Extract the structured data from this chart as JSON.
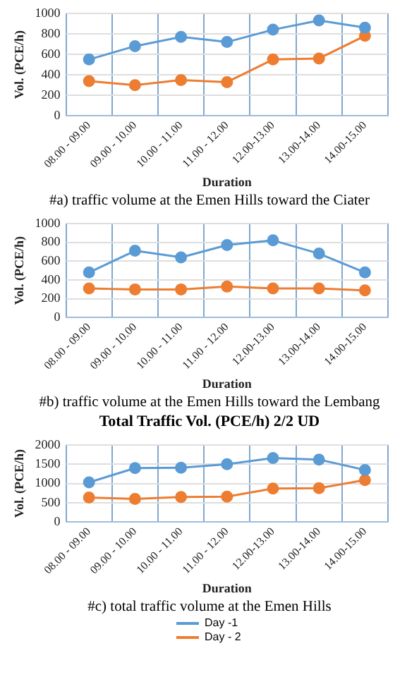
{
  "chart_data": [
    {
      "type": "line",
      "xlabel": "Duration",
      "ylabel": "Vol. (PCE/h)",
      "categories": [
        "08.00 - 09.00",
        "09.00 - 10.00",
        "10.00 - 11.00",
        "11.00 - 12.00",
        "12.00-13.00",
        "13.00-14.00",
        "14.00-15.00"
      ],
      "series": [
        {
          "color": "#5b9bd5",
          "values": [
            550,
            680,
            770,
            720,
            840,
            930,
            860
          ]
        },
        {
          "color": "#ed7d31",
          "values": [
            340,
            300,
            350,
            330,
            550,
            560,
            780
          ]
        }
      ],
      "ylim": [
        0,
        1000
      ],
      "yticks": [
        0,
        200,
        400,
        600,
        800,
        1000
      ],
      "grid": true,
      "marker": "circle",
      "legend": false,
      "annotations": [
        "#a) traffic volume at the Emen Hills toward the Ciater"
      ]
    },
    {
      "type": "line",
      "xlabel": "Duration",
      "ylabel": "Vol. (PCE/h)",
      "categories": [
        "08.00 - 09.00",
        "09.00 - 10.00",
        "10.00 - 11.00",
        "11.00 - 12.00",
        "12.00-13.00",
        "13.00-14.00",
        "14.00-15.00"
      ],
      "series": [
        {
          "color": "#5b9bd5",
          "values": [
            480,
            710,
            640,
            770,
            820,
            680,
            480
          ]
        },
        {
          "color": "#ed7d31",
          "values": [
            310,
            300,
            300,
            330,
            310,
            310,
            290
          ]
        }
      ],
      "ylim": [
        0,
        1000
      ],
      "yticks": [
        0,
        200,
        400,
        600,
        800,
        1000
      ],
      "grid": true,
      "marker": "circle",
      "legend": false,
      "annotations": [
        "#b) traffic volume at the Emen Hills toward the Lembang"
      ]
    },
    {
      "type": "line",
      "title": "Total Traffic Vol. (PCE/h) 2/2 UD",
      "xlabel": "Duration",
      "ylabel": "Vol. (PCE/h)",
      "categories": [
        "08.00 - 09.00",
        "09.00 - 10.00",
        "10.00 - 11.00",
        "11.00 - 12.00",
        "12.00-13.00",
        "13.00-14.00",
        "14.00-15.00"
      ],
      "series": [
        {
          "name": "Day -1",
          "color": "#5b9bd5",
          "values": [
            1030,
            1400,
            1410,
            1500,
            1660,
            1620,
            1350
          ]
        },
        {
          "name": "Day - 2",
          "color": "#ed7d31",
          "values": [
            640,
            600,
            650,
            660,
            870,
            880,
            1090
          ]
        }
      ],
      "ylim": [
        0,
        2000
      ],
      "yticks": [
        0,
        500,
        1000,
        1500,
        2000
      ],
      "grid": true,
      "marker": "circle",
      "legend": "bottom",
      "annotations": [
        "#c) total traffic volume at the Emen Hills"
      ]
    }
  ]
}
